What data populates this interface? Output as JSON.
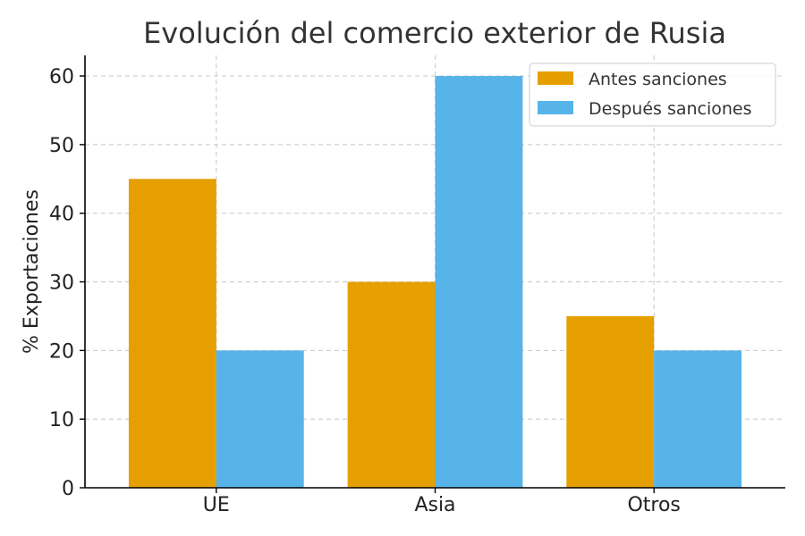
{
  "chart_data": {
    "type": "bar",
    "title": "Evolución del comercio exterior de Rusia",
    "xlabel": "",
    "ylabel": "% Exportaciones",
    "categories": [
      "UE",
      "Asia",
      "Otros"
    ],
    "series": [
      {
        "name": "Antes sanciones",
        "values": [
          45,
          30,
          25
        ],
        "color": "#E69F00"
      },
      {
        "name": "Después sanciones",
        "values": [
          20,
          60,
          20
        ],
        "color": "#56B4E9"
      }
    ],
    "ylim": [
      0,
      63
    ],
    "yticks": [
      0,
      10,
      20,
      30,
      40,
      50,
      60
    ],
    "grid": true,
    "legend": "top-right"
  }
}
